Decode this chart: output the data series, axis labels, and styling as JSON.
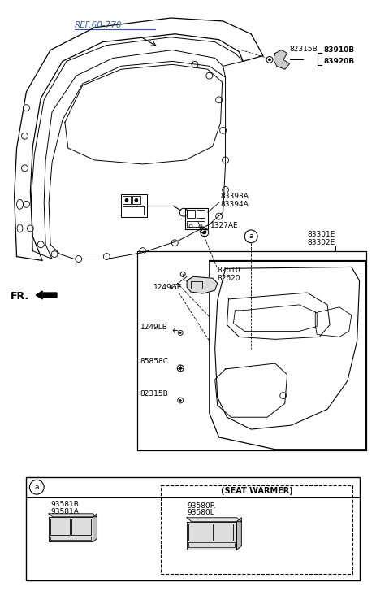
{
  "bg_color": "#ffffff",
  "labels": {
    "ref_60_770": "REF.60-770",
    "fr": "FR.",
    "82315B_top": "82315B",
    "83910B": "83910B",
    "83920B": "83920B",
    "83393A": "83393A",
    "83394A": "83394A",
    "1327AE": "1327AE",
    "82610": "82610",
    "82620": "82620",
    "1249GE": "1249GE",
    "83301E": "83301E",
    "83302E": "83302E",
    "1249LB": "1249LB",
    "85858C": "85858C",
    "82315B_bot": "82315B",
    "93581B": "93581B",
    "93581A": "93581A",
    "seat_warmer": "(SEAT WARMER)",
    "93580R": "93580R",
    "93580L": "93580L",
    "circle_a": "a"
  }
}
